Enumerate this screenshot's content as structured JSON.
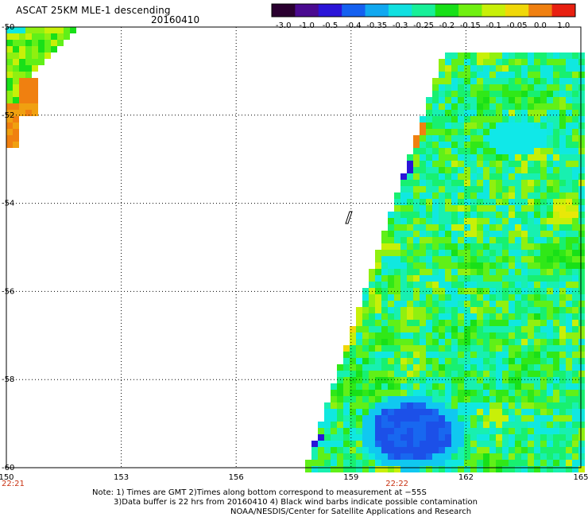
{
  "header": {
    "title": "ASCAT 25KM MLE-1 descending",
    "date": "20160410"
  },
  "colorbar": {
    "labels": [
      "-3.0",
      "-1.0",
      "-0.5",
      "-0.4",
      "-0.35",
      "-0.3",
      "-0.25",
      "-0.2",
      "-0.15",
      "-0.1",
      "-0.05",
      "0.0",
      "1.0"
    ],
    "colors": [
      "#2a0030",
      "#4a0a90",
      "#2a14d8",
      "#1460f0",
      "#10a8f0",
      "#10e0e0",
      "#18f098",
      "#18e018",
      "#70f010",
      "#c8f008",
      "#f0d808",
      "#f08010",
      "#e82010"
    ]
  },
  "map": {
    "lon_ticks": [
      "150",
      "153",
      "156",
      "159",
      "162",
      "165"
    ],
    "lat_ticks": [
      "-50",
      "-52",
      "-54",
      "-56",
      "-58",
      "-60"
    ],
    "times": [
      {
        "label": "22:21",
        "lon": 150
      },
      {
        "label": "22:22",
        "lon": 160.2
      }
    ]
  },
  "notes": {
    "line1": "Note: 1) Times are GMT 2)Times along bottom correspond to measurement at −55S",
    "line2": "3)Data buffer is 22 hrs from 20160410 4) Black wind barbs indicate possible contamination",
    "line3": "NOAA/NESDIS/Center for Satellite Applications and Research"
  }
}
